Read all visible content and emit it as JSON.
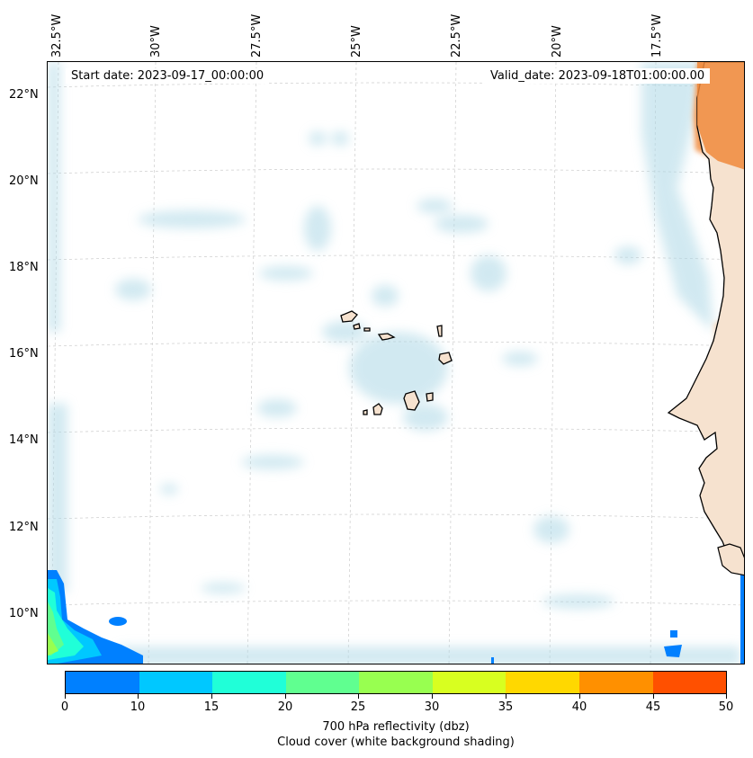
{
  "map": {
    "start_date": "Start date: 2023-09-17_00:00:00",
    "valid_date": "Valid_date: 2023-09-18T01:00:00.00",
    "longitude_labels": [
      "32.5°W",
      "30°W",
      "27.5°W",
      "25°W",
      "22.5°W",
      "20°W",
      "17.5°W"
    ],
    "latitude_labels": [
      "22°N",
      "20°N",
      "18°N",
      "16°N",
      "14°N",
      "12°N",
      "10°N"
    ],
    "land_color": "#f6e2cf",
    "coast_color": "#000000",
    "cloud_color": "#add8e6",
    "warm_color": "#f08a3c"
  },
  "colorbar": {
    "ticks": [
      "0",
      "10",
      "15",
      "20",
      "25",
      "30",
      "35",
      "40",
      "45",
      "50"
    ],
    "colors": [
      "#0080ff",
      "#00c8ff",
      "#20ffd8",
      "#60ff90",
      "#98ff50",
      "#d8ff20",
      "#ffd800",
      "#ff9000",
      "#ff5000"
    ],
    "label_line1": "700 hPa reflectivity (dbz)",
    "label_line2": "Cloud cover (white background shading)"
  }
}
